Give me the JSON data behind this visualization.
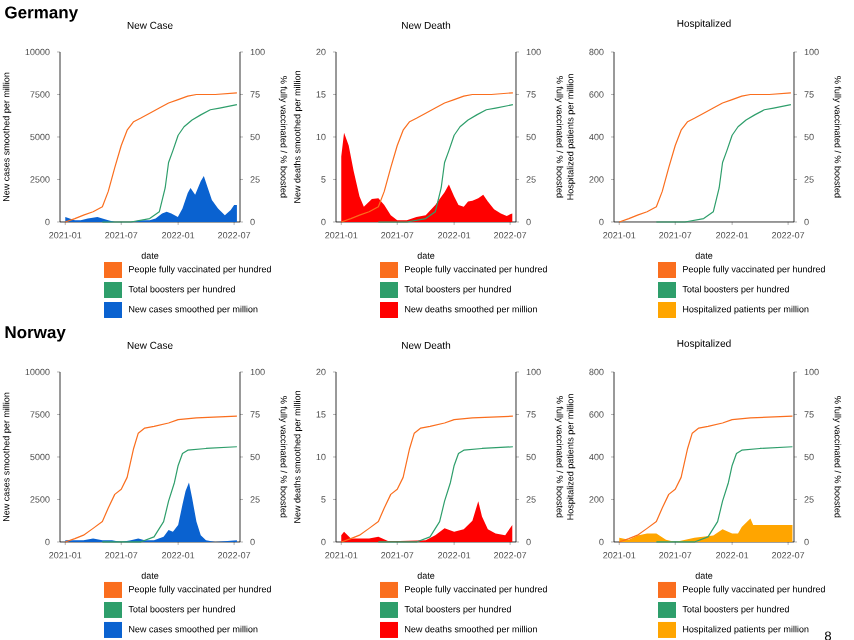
{
  "chart_data": [
    {
      "type": "area",
      "title": "New Case",
      "xlabel": "date",
      "ylabel": "New cases smoothed per million",
      "y2label": "% fully vaccinated / % boosted",
      "annotations": [
        "Germany"
      ],
      "legend": "bottom",
      "xlim": [
        "2020-12-15",
        "2022-07-20"
      ],
      "xticks": [
        "2021-01",
        "2021-07",
        "2022-01",
        "2022-07"
      ],
      "ylim": [
        0,
        10000
      ],
      "yticks": [
        0,
        2500,
        5000,
        7500,
        10000
      ],
      "y2lim": [
        0,
        100
      ],
      "y2ticks": [
        0,
        25,
        50,
        75,
        100
      ],
      "series": [
        {
          "name": "People fully vaccinated per hundred",
          "type": "line",
          "axis": "y2",
          "color": "#fa6e1e",
          "x": [
            "2021-01-01",
            "2021-02-01",
            "2021-03-01",
            "2021-04-01",
            "2021-05-01",
            "2021-05-20",
            "2021-06-10",
            "2021-07-01",
            "2021-07-20",
            "2021-08-10",
            "2021-09-01",
            "2021-10-01",
            "2021-11-01",
            "2021-12-01",
            "2022-01-01",
            "2022-02-01",
            "2022-03-01",
            "2022-05-01",
            "2022-07-10"
          ],
          "values": [
            0,
            2,
            4,
            6,
            9,
            18,
            32,
            45,
            54,
            59,
            61,
            64,
            67,
            70,
            72,
            74,
            75,
            75,
            76
          ]
        },
        {
          "name": "Total boosters per hundred",
          "type": "line",
          "axis": "y2",
          "color": "#2e9e6b",
          "x": [
            "2021-05-01",
            "2021-08-01",
            "2021-10-01",
            "2021-11-01",
            "2021-11-20",
            "2021-12-01",
            "2021-12-15",
            "2022-01-01",
            "2022-01-20",
            "2022-02-15",
            "2022-03-15",
            "2022-04-15",
            "2022-05-15",
            "2022-07-10"
          ],
          "values": [
            0,
            0,
            2,
            6,
            20,
            35,
            42,
            51,
            56,
            60,
            63,
            66,
            67,
            69
          ]
        },
        {
          "name": "New cases smoothed per million",
          "color": "#0a62d0",
          "x": [
            "2021-01-01",
            "2021-01-15",
            "2021-02-01",
            "2021-02-20",
            "2021-03-15",
            "2021-04-15",
            "2021-05-01",
            "2021-05-20",
            "2021-06-10",
            "2021-07-01",
            "2021-08-01",
            "2021-09-01",
            "2021-10-01",
            "2021-10-20",
            "2021-11-10",
            "2021-11-25",
            "2021-12-10",
            "2021-12-31",
            "2022-01-15",
            "2022-02-01",
            "2022-02-10",
            "2022-02-25",
            "2022-03-15",
            "2022-03-25",
            "2022-04-05",
            "2022-04-20",
            "2022-05-10",
            "2022-06-01",
            "2022-06-20",
            "2022-07-01",
            "2022-07-10"
          ],
          "values": [
            300,
            200,
            100,
            100,
            200,
            300,
            200,
            100,
            0,
            0,
            0,
            100,
            100,
            200,
            500,
            600,
            500,
            300,
            800,
            1700,
            2000,
            1600,
            2400,
            2700,
            2100,
            1300,
            800,
            400,
            700,
            1000,
            1000
          ]
        }
      ]
    },
    {
      "type": "area",
      "title": "New Death",
      "xlabel": "date",
      "ylabel": "New deaths smoothed per million",
      "y2label": "% fully vaccinated / % boosted",
      "legend": "bottom",
      "xlim": [
        "2020-12-15",
        "2022-07-20"
      ],
      "xticks": [
        "2021-01",
        "2021-07",
        "2022-01",
        "2022-07"
      ],
      "ylim": [
        0,
        20
      ],
      "yticks": [
        0,
        5,
        10,
        15,
        20
      ],
      "y2lim": [
        0,
        100
      ],
      "y2ticks": [
        0,
        25,
        50,
        75,
        100
      ],
      "series": [
        {
          "name": "People fully vaccinated per hundred",
          "type": "line",
          "axis": "y2",
          "color": "#fa6e1e",
          "x": [
            "2021-01-01",
            "2021-02-01",
            "2021-03-01",
            "2021-04-01",
            "2021-05-01",
            "2021-05-20",
            "2021-06-10",
            "2021-07-01",
            "2021-07-20",
            "2021-08-10",
            "2021-09-01",
            "2021-10-01",
            "2021-11-01",
            "2021-12-01",
            "2022-01-01",
            "2022-02-01",
            "2022-03-01",
            "2022-05-01",
            "2022-07-10"
          ],
          "values": [
            0,
            2,
            4,
            6,
            9,
            18,
            32,
            45,
            54,
            59,
            61,
            64,
            67,
            70,
            72,
            74,
            75,
            75,
            76
          ]
        },
        {
          "name": "Total boosters per hundred",
          "type": "line",
          "axis": "y2",
          "color": "#2e9e6b",
          "x": [
            "2021-05-01",
            "2021-08-01",
            "2021-10-01",
            "2021-11-01",
            "2021-11-20",
            "2021-12-01",
            "2021-12-15",
            "2022-01-01",
            "2022-01-20",
            "2022-02-15",
            "2022-03-15",
            "2022-04-15",
            "2022-05-15",
            "2022-07-10"
          ],
          "values": [
            0,
            0,
            2,
            6,
            20,
            35,
            42,
            51,
            56,
            60,
            63,
            66,
            67,
            69
          ]
        },
        {
          "name": "New deaths smoothed per million",
          "color": "#ff0000",
          "x": [
            "2021-01-01",
            "2021-01-10",
            "2021-01-25",
            "2021-02-10",
            "2021-03-01",
            "2021-03-15",
            "2021-04-10",
            "2021-05-01",
            "2021-05-20",
            "2021-06-10",
            "2021-07-01",
            "2021-08-01",
            "2021-09-01",
            "2021-10-01",
            "2021-11-01",
            "2021-12-01",
            "2021-12-15",
            "2022-01-01",
            "2022-01-15",
            "2022-02-01",
            "2022-02-15",
            "2022-03-01",
            "2022-03-20",
            "2022-04-05",
            "2022-04-20",
            "2022-05-10",
            "2022-06-01",
            "2022-06-20",
            "2022-07-01",
            "2022-07-08"
          ],
          "values": [
            7.7,
            10.5,
            9,
            6,
            3,
            1.8,
            2.7,
            2.8,
            2,
            0.8,
            0.2,
            0.2,
            0.6,
            0.8,
            2,
            3.5,
            4.4,
            3,
            2,
            1.8,
            2.4,
            2.5,
            2.8,
            3.2,
            2.4,
            1.5,
            1,
            0.7,
            0.9,
            1
          ]
        }
      ]
    },
    {
      "type": "area",
      "title": "Hospitalized",
      "xlabel": "date",
      "ylabel": "Hospitalized patients per million",
      "y2label": "% fully vaccinated / % boosted",
      "legend": "bottom",
      "xlim": [
        "2020-12-15",
        "2022-07-20"
      ],
      "xticks": [
        "2021-01",
        "2021-07",
        "2022-01",
        "2022-07"
      ],
      "ylim": [
        0,
        800
      ],
      "yticks": [
        0,
        200,
        400,
        600,
        800
      ],
      "y2lim": [
        0,
        100
      ],
      "y2ticks": [
        0,
        25,
        50,
        75,
        100
      ],
      "series": [
        {
          "name": "People fully vaccinated per hundred",
          "type": "line",
          "axis": "y2",
          "color": "#fa6e1e",
          "x": [
            "2021-01-01",
            "2021-02-01",
            "2021-03-01",
            "2021-04-01",
            "2021-05-01",
            "2021-05-20",
            "2021-06-10",
            "2021-07-01",
            "2021-07-20",
            "2021-08-10",
            "2021-09-01",
            "2021-10-01",
            "2021-11-01",
            "2021-12-01",
            "2022-01-01",
            "2022-02-01",
            "2022-03-01",
            "2022-05-01",
            "2022-07-10"
          ],
          "values": [
            0,
            2,
            4,
            6,
            9,
            18,
            32,
            45,
            54,
            59,
            61,
            64,
            67,
            70,
            72,
            74,
            75,
            75,
            76
          ]
        },
        {
          "name": "Total boosters per hundred",
          "type": "line",
          "axis": "y2",
          "color": "#2e9e6b",
          "x": [
            "2021-05-01",
            "2021-08-01",
            "2021-10-01",
            "2021-11-01",
            "2021-11-20",
            "2021-12-01",
            "2021-12-15",
            "2022-01-01",
            "2022-01-20",
            "2022-02-15",
            "2022-03-15",
            "2022-04-15",
            "2022-05-15",
            "2022-07-10"
          ],
          "values": [
            0,
            0,
            2,
            6,
            20,
            35,
            42,
            51,
            56,
            60,
            63,
            66,
            67,
            69
          ]
        },
        {
          "name": "Hospitalized patients per million",
          "color": "#ffa500"
        }
      ]
    },
    {
      "type": "area",
      "title": "New Case",
      "xlabel": "date",
      "ylabel": "New cases smoothed per million",
      "y2label": "% fully vaccinated / % boosted",
      "annotations": [
        "Norway"
      ],
      "legend": "bottom",
      "xlim": [
        "2020-12-15",
        "2022-07-20"
      ],
      "xticks": [
        "2021-01",
        "2021-07",
        "2022-01",
        "2022-07"
      ],
      "ylim": [
        0,
        10000
      ],
      "yticks": [
        0,
        2500,
        5000,
        7500,
        10000
      ],
      "y2lim": [
        0,
        100
      ],
      "y2ticks": [
        0,
        25,
        50,
        75,
        100
      ],
      "series": [
        {
          "name": "People fully vaccinated per hundred",
          "type": "line",
          "axis": "y2",
          "color": "#fa6e1e",
          "x": [
            "2021-01-01",
            "2021-02-01",
            "2021-03-01",
            "2021-04-01",
            "2021-05-01",
            "2021-05-20",
            "2021-06-10",
            "2021-07-01",
            "2021-07-20",
            "2021-08-10",
            "2021-08-25",
            "2021-09-15",
            "2021-10-15",
            "2021-12-01",
            "2022-01-01",
            "2022-03-01",
            "2022-07-10"
          ],
          "values": [
            0,
            2,
            4,
            8,
            12,
            20,
            28,
            31,
            38,
            55,
            64,
            67,
            68,
            70,
            72,
            73,
            74
          ]
        },
        {
          "name": "Total boosters per hundred",
          "type": "line",
          "axis": "y2",
          "color": "#2e9e6b",
          "x": [
            "2021-05-01",
            "2021-09-01",
            "2021-10-15",
            "2021-11-15",
            "2021-12-01",
            "2021-12-20",
            "2022-01-01",
            "2022-01-15",
            "2022-02-01",
            "2022-04-01",
            "2022-07-10"
          ],
          "values": [
            0,
            0,
            3,
            12,
            24,
            35,
            45,
            52,
            54,
            55,
            56
          ]
        },
        {
          "name": "New cases smoothed per million",
          "color": "#0a62d0",
          "x": [
            "2021-01-01",
            "2021-01-15",
            "2021-02-01",
            "2021-03-01",
            "2021-04-01",
            "2021-05-01",
            "2021-06-01",
            "2021-07-01",
            "2021-08-01",
            "2021-08-25",
            "2021-09-15",
            "2021-10-15",
            "2021-11-15",
            "2021-12-01",
            "2021-12-15",
            "2022-01-01",
            "2022-01-15",
            "2022-01-25",
            "2022-02-05",
            "2022-02-15",
            "2022-03-01",
            "2022-03-15",
            "2022-04-01",
            "2022-05-01",
            "2022-07-10"
          ],
          "values": [
            100,
            100,
            100,
            100,
            200,
            100,
            100,
            0,
            100,
            200,
            100,
            100,
            300,
            700,
            600,
            1000,
            2200,
            3000,
            3500,
            2600,
            1200,
            400,
            100,
            0,
            100
          ]
        }
      ]
    },
    {
      "type": "area",
      "title": "New Death",
      "xlabel": "date",
      "ylabel": "New deaths smoothed per million",
      "y2label": "% fully vaccinated / % boosted",
      "legend": "bottom",
      "xlim": [
        "2020-12-15",
        "2022-07-20"
      ],
      "xticks": [
        "2021-01",
        "2021-07",
        "2022-01",
        "2022-07"
      ],
      "ylim": [
        0,
        20
      ],
      "yticks": [
        0,
        5,
        10,
        15,
        20
      ],
      "y2lim": [
        0,
        100
      ],
      "y2ticks": [
        0,
        25,
        50,
        75,
        100
      ],
      "series": [
        {
          "name": "People fully vaccinated per hundred",
          "type": "line",
          "axis": "y2",
          "color": "#fa6e1e",
          "x": [
            "2021-01-01",
            "2021-02-01",
            "2021-03-01",
            "2021-04-01",
            "2021-05-01",
            "2021-05-20",
            "2021-06-10",
            "2021-07-01",
            "2021-07-20",
            "2021-08-10",
            "2021-08-25",
            "2021-09-15",
            "2021-10-15",
            "2021-12-01",
            "2022-01-01",
            "2022-03-01",
            "2022-07-10"
          ],
          "values": [
            0,
            2,
            4,
            8,
            12,
            20,
            28,
            31,
            38,
            55,
            64,
            67,
            68,
            70,
            72,
            73,
            74
          ]
        },
        {
          "name": "Total boosters per hundred",
          "type": "line",
          "axis": "y2",
          "color": "#2e9e6b",
          "x": [
            "2021-05-01",
            "2021-09-01",
            "2021-10-15",
            "2021-11-15",
            "2021-12-01",
            "2021-12-20",
            "2022-01-01",
            "2022-01-15",
            "2022-02-01",
            "2022-04-01",
            "2022-07-10"
          ],
          "values": [
            0,
            0,
            3,
            12,
            24,
            35,
            45,
            52,
            54,
            55,
            56
          ]
        },
        {
          "name": "New deaths smoothed per million",
          "color": "#ff0000",
          "x": [
            "2021-01-01",
            "2021-01-10",
            "2021-02-01",
            "2021-04-01",
            "2021-05-01",
            "2021-06-01",
            "2021-07-09",
            "2021-10-01",
            "2021-11-01",
            "2021-12-01",
            "2022-01-01",
            "2022-02-01",
            "2022-03-01",
            "2022-03-20",
            "2022-04-01",
            "2022-04-20",
            "2022-05-15",
            "2022-06-15",
            "2022-07-08"
          ],
          "values": [
            0.8,
            1.2,
            0.4,
            0.4,
            0.6,
            0.1,
            0.1,
            0.2,
            0.8,
            1.6,
            1.2,
            1.5,
            2.5,
            4.8,
            3,
            1.5,
            1,
            0.8,
            2
          ]
        }
      ]
    },
    {
      "type": "area",
      "title": "Hospitalized",
      "xlabel": "date",
      "ylabel": "Hospitalized patients per million",
      "y2label": "% fully vaccinated / % boosted",
      "annotations": [
        "8"
      ],
      "legend": "bottom",
      "xlim": [
        "2020-12-15",
        "2022-07-20"
      ],
      "xticks": [
        "2021-01",
        "2021-07",
        "2022-01",
        "2022-07"
      ],
      "ylim": [
        0,
        800
      ],
      "yticks": [
        0,
        200,
        400,
        600,
        800
      ],
      "y2lim": [
        0,
        100
      ],
      "y2ticks": [
        0,
        25,
        50,
        75,
        100
      ],
      "series": [
        {
          "name": "People fully vaccinated per hundred",
          "type": "line",
          "axis": "y2",
          "color": "#fa6e1e",
          "x": [
            "2021-01-01",
            "2021-02-01",
            "2021-03-01",
            "2021-04-01",
            "2021-05-01",
            "2021-05-20",
            "2021-06-10",
            "2021-07-01",
            "2021-07-20",
            "2021-08-10",
            "2021-08-25",
            "2021-09-15",
            "2021-10-15",
            "2021-12-01",
            "2022-01-01",
            "2022-03-01",
            "2022-07-15"
          ],
          "values": [
            0,
            2,
            4,
            8,
            12,
            20,
            28,
            31,
            38,
            55,
            64,
            67,
            68,
            70,
            72,
            73,
            74
          ]
        },
        {
          "name": "Total boosters per hundred",
          "type": "line",
          "axis": "y2",
          "color": "#2e9e6b",
          "x": [
            "2021-05-01",
            "2021-09-01",
            "2021-10-15",
            "2021-11-15",
            "2021-12-01",
            "2021-12-20",
            "2022-01-01",
            "2022-01-15",
            "2022-02-01",
            "2022-04-01",
            "2022-07-15"
          ],
          "values": [
            0,
            0,
            3,
            12,
            24,
            35,
            45,
            52,
            54,
            55,
            56
          ]
        },
        {
          "name": "Hospitalized patients per million",
          "color": "#ffa500",
          "x": [
            "2021-01-01",
            "2021-02-01",
            "2021-03-01",
            "2021-04-01",
            "2021-05-01",
            "2021-06-01",
            "2021-07-01",
            "2021-09-01",
            "2021-11-01",
            "2021-12-01",
            "2022-01-01",
            "2022-01-20",
            "2022-02-01",
            "2022-03-01",
            "2022-03-10",
            "2022-07-15"
          ],
          "values": [
            20,
            10,
            30,
            40,
            40,
            10,
            0,
            20,
            30,
            60,
            40,
            40,
            70,
            110,
            80,
            80
          ]
        }
      ]
    }
  ]
}
